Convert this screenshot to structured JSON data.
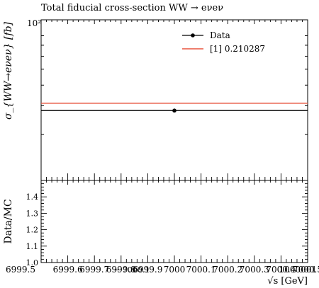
{
  "chart_data": [
    {
      "panel": "main",
      "type": "scatter",
      "title": "Total fiducial cross-section WW → eνeν",
      "ylabel": "σ_{WW→eνeν} [fb]",
      "yscale": "log",
      "ytick_labels": [
        "10²"
      ],
      "legend": "top-right",
      "series": [
        {
          "name": "Data",
          "style": "points",
          "color": "#000000",
          "x": [
            7000
          ],
          "y": [
            28
          ]
        },
        {
          "name": "[1] 0.210287",
          "style": "line",
          "color": "#e8543f",
          "x": [
            6999.5,
            7000.5
          ],
          "y": [
            31,
            31
          ]
        }
      ]
    },
    {
      "panel": "ratio",
      "type": "line",
      "ylabel": "Data/MC",
      "xlabel": "√s [GeV]",
      "xlim": [
        6999.5,
        7000.5
      ],
      "ylim": [
        1.0,
        1.5
      ],
      "yticks": [
        "1.0",
        "1.1",
        "1.2",
        "1.3",
        "1.4"
      ],
      "xtick_labels": [
        "6999.5",
        "6999.6",
        "6999.7",
        "6999.8",
        "6999.9",
        "7000",
        "7000.1",
        "7000.2",
        "7000.3",
        "7000.4",
        "7000.5"
      ],
      "x_offset_label": "− 7000.1",
      "x_end_label": "1000001"
    }
  ]
}
